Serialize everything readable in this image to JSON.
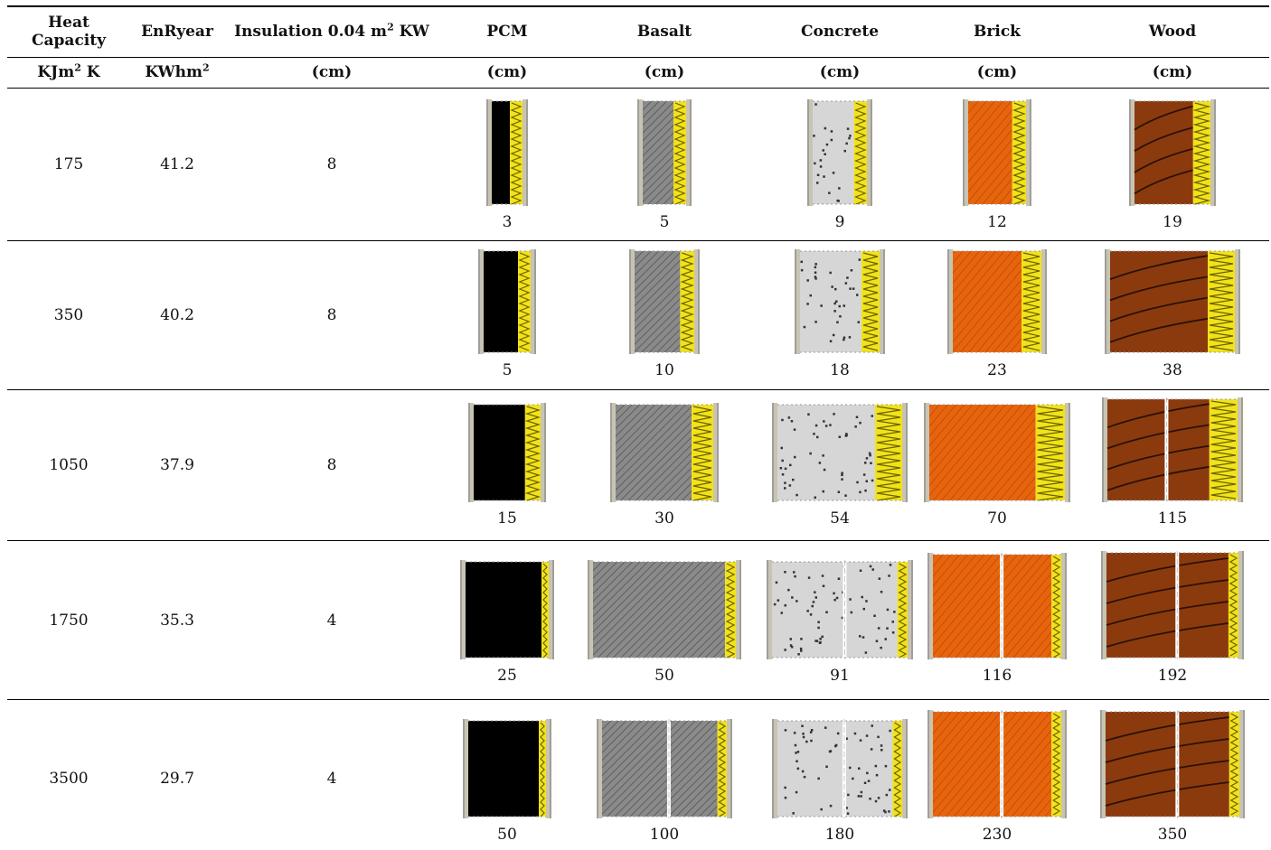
{
  "header": {
    "row1": {
      "heat": "Heat Capacity",
      "enr": "EnRyear",
      "ins_pre": "Insulation 0.04 m",
      "ins_sup": "2",
      "ins_post": " KW",
      "pcm": "PCM",
      "basalt": "Basalt",
      "concrete": "Concrete",
      "brick": "Brick",
      "wood": "Wood"
    },
    "row2": {
      "heat_pre": "KJm",
      "heat_sup": "2",
      "heat_post": " K",
      "enr_pre": "KWhm",
      "enr_sup": "2",
      "unit": "(cm)"
    }
  },
  "rows": [
    {
      "heat": "175",
      "enr": "41.2",
      "ins": "8",
      "pcm": "3",
      "basalt": "5",
      "concrete": "9",
      "brick": "12",
      "wood": "19"
    },
    {
      "heat": "350",
      "enr": "40.2",
      "ins": "8",
      "pcm": "5",
      "basalt": "10",
      "concrete": "18",
      "brick": "23",
      "wood": "38"
    },
    {
      "heat": "1050",
      "enr": "37.9",
      "ins": "8",
      "pcm": "15",
      "basalt": "30",
      "concrete": "54",
      "brick": "70",
      "wood": "115"
    },
    {
      "heat": "1750",
      "enr": "35.3",
      "ins": "4",
      "pcm": "25",
      "basalt": "50",
      "concrete": "91",
      "brick": "116",
      "wood": "192"
    },
    {
      "heat": "3500",
      "enr": "29.7",
      "ins": "4",
      "pcm": "50",
      "basalt": "100",
      "concrete": "180",
      "brick": "230",
      "wood": "350"
    }
  ],
  "material_colors": {
    "pcm": "#000000",
    "basalt": "#8a8a8a",
    "concrete": "#d6d6d6",
    "brick": "#e8640c",
    "wood": "#8b3a0e",
    "insulation": "#f2e21a",
    "plaster": "#c8c4b4"
  }
}
